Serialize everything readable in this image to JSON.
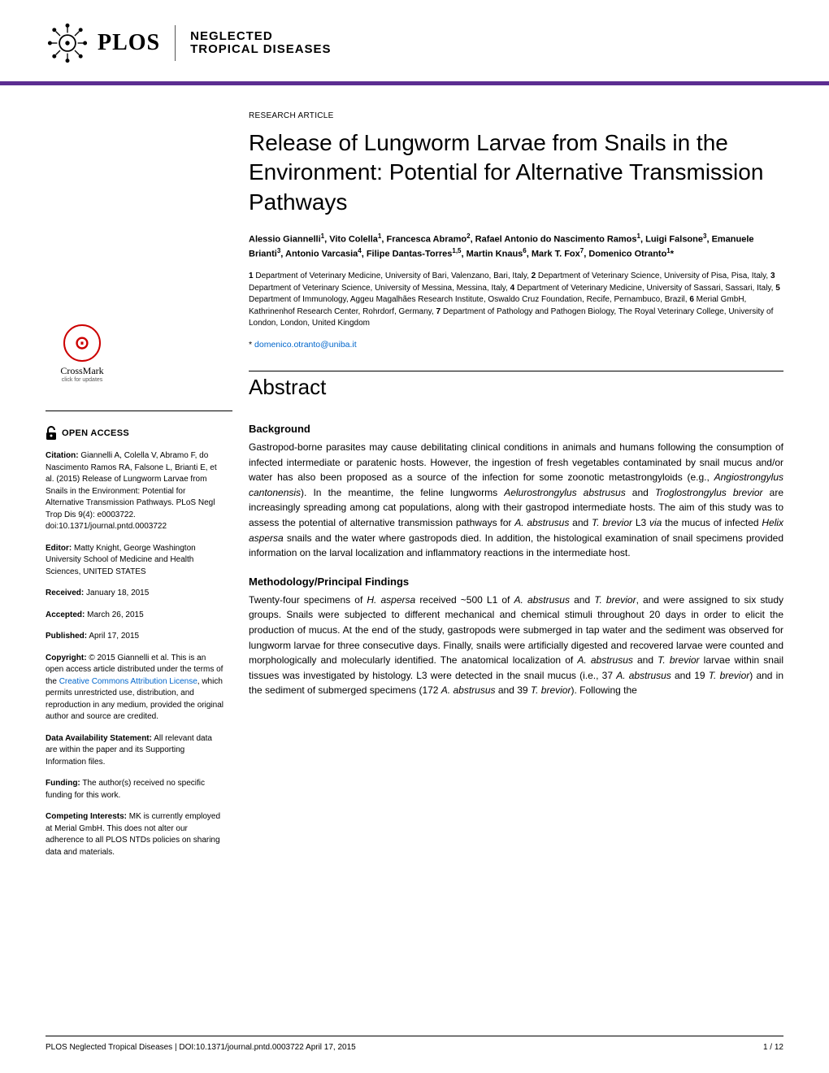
{
  "header": {
    "publisher": "PLOS",
    "journal_line1": "NEGLECTED",
    "journal_line2": "TROPICAL DISEASES",
    "purple_rule_color": "#5c2d91"
  },
  "crossmark": {
    "label": "CrossMark",
    "sub": "click for updates"
  },
  "open_access": {
    "label": "OPEN ACCESS"
  },
  "sidebar": {
    "citation_label": "Citation:",
    "citation_text": " Giannelli A, Colella V, Abramo F, do Nascimento Ramos RA, Falsone L, Brianti E, et al. (2015) Release of Lungworm Larvae from Snails in the Environment: Potential for Alternative Transmission Pathways. PLoS Negl Trop Dis 9(4): e0003722. doi:10.1371/journal.pntd.0003722",
    "editor_label": "Editor:",
    "editor_text": " Matty Knight, George Washington University School of Medicine and Health Sciences, UNITED STATES",
    "received_label": "Received:",
    "received_text": " January 18, 2015",
    "accepted_label": "Accepted:",
    "accepted_text": " March 26, 2015",
    "published_label": "Published:",
    "published_text": " April 17, 2015",
    "copyright_label": "Copyright:",
    "copyright_text_a": " © 2015 Giannelli et al. This is an open access article distributed under the terms of the ",
    "copyright_link": "Creative Commons Attribution License",
    "copyright_text_b": ", which permits unrestricted use, distribution, and reproduction in any medium, provided the original author and source are credited.",
    "data_label": "Data Availability Statement:",
    "data_text": " All relevant data are within the paper and its Supporting Information files.",
    "funding_label": "Funding:",
    "funding_text": " The author(s) received no specific funding for this work.",
    "competing_label": "Competing Interests:",
    "competing_text": " MK is currently employed at Merial GmbH. This does not alter our adherence to all PLOS NTDs policies on sharing data and materials."
  },
  "article": {
    "type": "RESEARCH ARTICLE",
    "title": "Release of Lungworm Larvae from Snails in the Environment: Potential for Alternative Transmission Pathways",
    "authors_html": "Alessio Giannelli<sup>1</sup>, Vito Colella<sup>1</sup>, Francesca Abramo<sup>2</sup>, Rafael Antonio do Nascimento Ramos<sup>1</sup>, Luigi Falsone<sup>3</sup>, Emanuele Brianti<sup>3</sup>, Antonio Varcasia<sup>4</sup>, Filipe Dantas-Torres<sup>1,5</sup>, Martin Knaus<sup>6</sup>, Mark T. Fox<sup>7</sup>, Domenico Otranto<sup>1</sup>*",
    "affiliations_html": "<b>1</b> Department of Veterinary Medicine, University of Bari, Valenzano, Bari, Italy, <b>2</b> Department of Veterinary Science, University of Pisa, Pisa, Italy, <b>3</b> Department of Veterinary Science, University of Messina, Messina, Italy, <b>4</b> Department of Veterinary Medicine, University of Sassari, Sassari, Italy, <b>5</b> Department of Immunology, Aggeu Magalhães Research Institute, Oswaldo Cruz Foundation, Recife, Pernambuco, Brazil, <b>6</b> Merial GmbH, Kathrinenhof Research Center, Rohrdorf, Germany, <b>7</b> Department of Pathology and Pathogen Biology, The Royal Veterinary College, University of London, London, United Kingdom",
    "correspondence_mark": "* ",
    "correspondence_email": "domenico.otranto@uniba.it",
    "abstract_heading": "Abstract",
    "background_heading": "Background",
    "background_body": "Gastropod-borne parasites may cause debilitating clinical conditions in animals and humans following the consumption of infected intermediate or paratenic hosts. However, the ingestion of fresh vegetables contaminated by snail mucus and/or water has also been proposed as a source of the infection for some zoonotic metastrongyloids (e.g., <i>Angiostrongylus cantonensis</i>). In the meantime, the feline lungworms <i>Aelurostrongylus abstrusus</i> and <i>Troglostrongylus brevior</i> are increasingly spreading among cat populations, along with their gastropod intermediate hosts. The aim of this study was to assess the potential of alternative transmission pathways for <i>A. abstrusus</i> and <i>T. brevior</i> L3 <i>via</i> the mucus of infected <i>Helix aspersa</i> snails and the water where gastropods died. In addition, the histological examination of snail specimens provided information on the larval localization and inflammatory reactions in the intermediate host.",
    "methods_heading": "Methodology/Principal Findings",
    "methods_body": "Twenty-four specimens of <i>H. aspersa</i> received ~500 L1 of <i>A. abstrusus</i> and <i>T. brevior</i>, and were assigned to six study groups. Snails were subjected to different mechanical and chemical stimuli throughout 20 days in order to elicit the production of mucus. At the end of the study, gastropods were submerged in tap water and the sediment was observed for lungworm larvae for three consecutive days. Finally, snails were artificially digested and recovered larvae were counted and morphologically and molecularly identified. The anatomical localization of <i>A. abstrusus</i> and <i>T. brevior</i> larvae within snail tissues was investigated by histology. L3 were detected in the snail mucus (i.e., 37 <i>A. abstrusus</i> and 19 <i>T. brevior</i>) and in the sediment of submerged specimens (172 <i>A. abstrusus</i> and 39 <i>T. brevior</i>). Following the"
  },
  "footer": {
    "left": "PLOS Neglected Tropical Diseases | DOI:10.1371/journal.pntd.0003722   April 17, 2015",
    "right": "1 / 12"
  },
  "colors": {
    "text": "#000000",
    "link": "#0066cc",
    "purple": "#5c2d91",
    "crossmark_red": "#c00000"
  }
}
